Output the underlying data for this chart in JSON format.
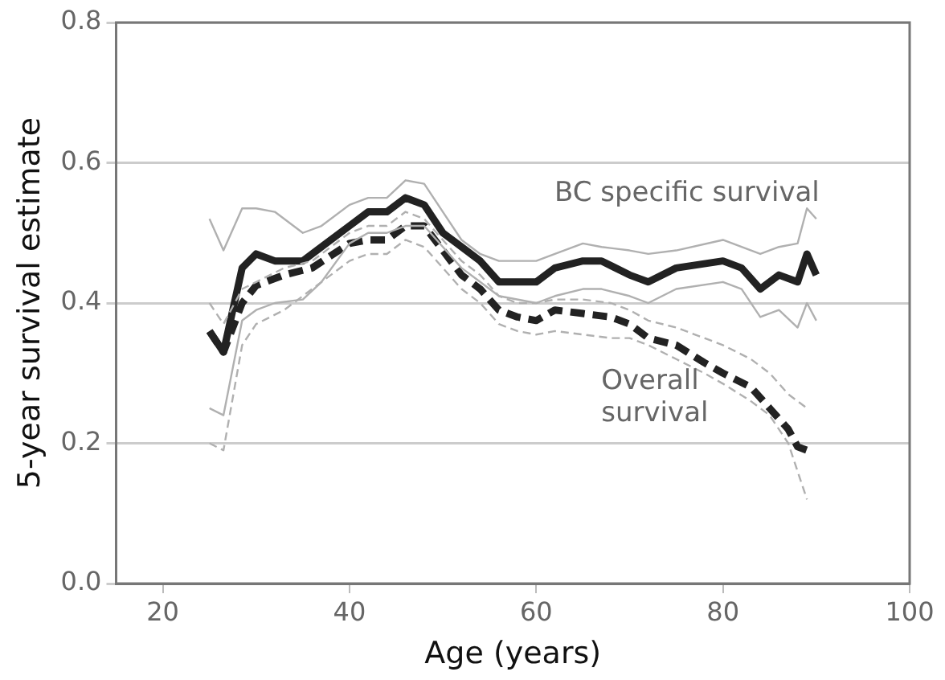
{
  "chart_data": {
    "type": "line",
    "xlabel": "Age (years)",
    "ylabel": "5-year survival estimate",
    "xlim": [
      15,
      100
    ],
    "xticks": [
      20,
      40,
      60,
      80,
      100
    ],
    "ylim": [
      0,
      0.8
    ],
    "yticks": [
      {
        "value": 0,
        "label": "0.0"
      },
      {
        "value": 0.2,
        "label": "0.2"
      },
      {
        "value": 0.4,
        "label": "0.4"
      },
      {
        "value": 0.6,
        "label": "0.6"
      },
      {
        "value": 0.8,
        "label": "0.8"
      }
    ],
    "grid": "y",
    "legend": false,
    "marker": "none",
    "series": [
      {
        "color": "#b0b0b0",
        "line_style": "solid",
        "x": [
          25,
          26.5,
          28.5,
          30,
          32,
          35,
          37,
          40,
          42,
          44,
          46,
          48,
          50,
          52,
          54,
          56,
          60,
          62,
          65,
          67,
          70,
          72,
          75,
          80,
          82,
          84,
          86,
          88,
          89,
          90
        ],
        "values": [
          0.52,
          0.475,
          0.535,
          0.535,
          0.53,
          0.5,
          0.51,
          0.54,
          0.55,
          0.55,
          0.575,
          0.57,
          0.53,
          0.49,
          0.47,
          0.46,
          0.46,
          0.47,
          0.485,
          0.48,
          0.475,
          0.47,
          0.475,
          0.49,
          0.48,
          0.47,
          0.48,
          0.485,
          0.535,
          0.52
        ]
      },
      {
        "color": "#b0b0b0",
        "line_style": "solid",
        "x": [
          25,
          26.5,
          28.5,
          30,
          32,
          35,
          37,
          40,
          42,
          44,
          46,
          48,
          50,
          52,
          54,
          56,
          60,
          62,
          65,
          67,
          70,
          72,
          75,
          80,
          82,
          84,
          86,
          88,
          89,
          90
        ],
        "values": [
          0.25,
          0.24,
          0.375,
          0.39,
          0.4,
          0.405,
          0.43,
          0.485,
          0.5,
          0.5,
          0.51,
          0.51,
          0.48,
          0.45,
          0.43,
          0.41,
          0.4,
          0.41,
          0.42,
          0.42,
          0.41,
          0.4,
          0.42,
          0.43,
          0.42,
          0.38,
          0.39,
          0.365,
          0.4,
          0.375
        ]
      },
      {
        "color": "#b0b0b0",
        "line_style": "dashed",
        "x": [
          25,
          26.5,
          28.5,
          30,
          33,
          36,
          40,
          42,
          44,
          46,
          48,
          50,
          52,
          54,
          56,
          58,
          60,
          62,
          65,
          68,
          70,
          72,
          75,
          78,
          80,
          83,
          85,
          87,
          88,
          89
        ],
        "values": [
          0.4,
          0.37,
          0.42,
          0.43,
          0.45,
          0.46,
          0.5,
          0.51,
          0.51,
          0.53,
          0.52,
          0.49,
          0.46,
          0.44,
          0.41,
          0.4,
          0.4,
          0.405,
          0.405,
          0.4,
          0.39,
          0.375,
          0.365,
          0.35,
          0.34,
          0.32,
          0.3,
          0.27,
          0.26,
          0.25
        ]
      },
      {
        "color": "#b0b0b0",
        "line_style": "dashed",
        "x": [
          25,
          26.5,
          28.5,
          30,
          33,
          36,
          40,
          42,
          44,
          46,
          48,
          50,
          52,
          54,
          56,
          58,
          60,
          62,
          65,
          68,
          70,
          72,
          75,
          78,
          80,
          83,
          85,
          87,
          88,
          89
        ],
        "values": [
          0.2,
          0.19,
          0.34,
          0.37,
          0.39,
          0.42,
          0.46,
          0.47,
          0.47,
          0.49,
          0.48,
          0.45,
          0.42,
          0.4,
          0.37,
          0.36,
          0.355,
          0.36,
          0.355,
          0.35,
          0.35,
          0.34,
          0.32,
          0.3,
          0.285,
          0.26,
          0.24,
          0.2,
          0.16,
          0.12
        ]
      },
      {
        "name": "BC specific survival",
        "color": "#222222",
        "line_style": "solid",
        "x": [
          25,
          26.5,
          28.5,
          30,
          32,
          35,
          37,
          40,
          42,
          44,
          46,
          48,
          50,
          52,
          54,
          56,
          60,
          62,
          65,
          67,
          70,
          72,
          75,
          80,
          82,
          84,
          86,
          88,
          89,
          90
        ],
        "values": [
          0.36,
          0.33,
          0.45,
          0.47,
          0.46,
          0.46,
          0.48,
          0.51,
          0.53,
          0.53,
          0.55,
          0.54,
          0.5,
          0.48,
          0.46,
          0.43,
          0.43,
          0.45,
          0.46,
          0.46,
          0.44,
          0.43,
          0.45,
          0.46,
          0.45,
          0.42,
          0.44,
          0.43,
          0.47,
          0.44
        ]
      },
      {
        "name": "Overall survival",
        "color": "#222222",
        "line_style": "dashed",
        "x": [
          25,
          26.5,
          28.5,
          30,
          33,
          36,
          40,
          42,
          44,
          46,
          48,
          50,
          52,
          54,
          56,
          58,
          60,
          62,
          65,
          68,
          70,
          72,
          75,
          78,
          80,
          83,
          85,
          87,
          88,
          89
        ],
        "values": [
          0.36,
          0.33,
          0.4,
          0.425,
          0.44,
          0.45,
          0.485,
          0.49,
          0.49,
          0.51,
          0.51,
          0.475,
          0.44,
          0.42,
          0.39,
          0.38,
          0.375,
          0.39,
          0.385,
          0.38,
          0.37,
          0.35,
          0.34,
          0.315,
          0.3,
          0.28,
          0.25,
          0.22,
          0.195,
          0.19
        ]
      }
    ]
  }
}
